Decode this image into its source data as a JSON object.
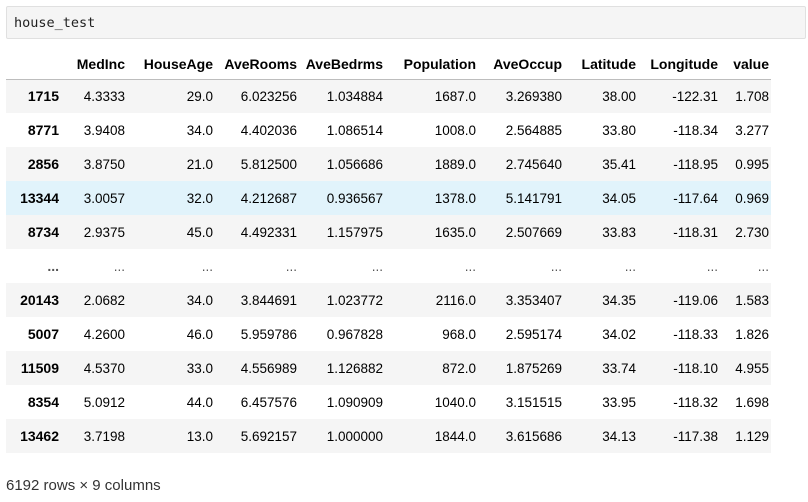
{
  "cell": {
    "code": "house_test"
  },
  "table": {
    "columns": [
      "MedInc",
      "HouseAge",
      "AveRooms",
      "AveBedrms",
      "Population",
      "AveOccup",
      "Latitude",
      "Longitude",
      "value"
    ],
    "rows": [
      {
        "index": "1715",
        "cells": [
          "4.3333",
          "29.0",
          "6.023256",
          "1.034884",
          "1687.0",
          "3.269380",
          "38.00",
          "-122.31",
          "1.708"
        ]
      },
      {
        "index": "8771",
        "cells": [
          "3.9408",
          "34.0",
          "4.402036",
          "1.086514",
          "1008.0",
          "2.564885",
          "33.80",
          "-118.34",
          "3.277"
        ]
      },
      {
        "index": "2856",
        "cells": [
          "3.8750",
          "21.0",
          "5.812500",
          "1.056686",
          "1889.0",
          "2.745640",
          "35.41",
          "-118.95",
          "0.995"
        ]
      },
      {
        "index": "13344",
        "cells": [
          "3.0057",
          "32.0",
          "4.212687",
          "0.936567",
          "1378.0",
          "5.141791",
          "34.05",
          "-117.64",
          "0.969"
        ]
      },
      {
        "index": "8734",
        "cells": [
          "2.9375",
          "45.0",
          "4.492331",
          "1.157975",
          "1635.0",
          "2.507669",
          "33.83",
          "-118.31",
          "2.730"
        ]
      },
      {
        "index": "...",
        "cells": [
          "...",
          "...",
          "...",
          "...",
          "...",
          "...",
          "...",
          "...",
          "..."
        ]
      },
      {
        "index": "20143",
        "cells": [
          "2.0682",
          "34.0",
          "3.844691",
          "1.023772",
          "2116.0",
          "3.353407",
          "34.35",
          "-119.06",
          "1.583"
        ]
      },
      {
        "index": "5007",
        "cells": [
          "4.2600",
          "46.0",
          "5.959786",
          "0.967828",
          "968.0",
          "2.595174",
          "34.02",
          "-118.33",
          "1.826"
        ]
      },
      {
        "index": "11509",
        "cells": [
          "4.5370",
          "33.0",
          "4.556989",
          "1.126882",
          "872.0",
          "1.875269",
          "33.74",
          "-118.10",
          "4.955"
        ]
      },
      {
        "index": "8354",
        "cells": [
          "5.0912",
          "44.0",
          "6.457576",
          "1.090909",
          "1040.0",
          "3.151515",
          "33.95",
          "-118.32",
          "1.698"
        ]
      },
      {
        "index": "13462",
        "cells": [
          "3.7198",
          "13.0",
          "5.692157",
          "1.000000",
          "1844.0",
          "3.615686",
          "34.13",
          "-117.38",
          "1.129"
        ]
      }
    ],
    "highlighted_row": "13344"
  },
  "shape": "6192 rows × 9 columns"
}
